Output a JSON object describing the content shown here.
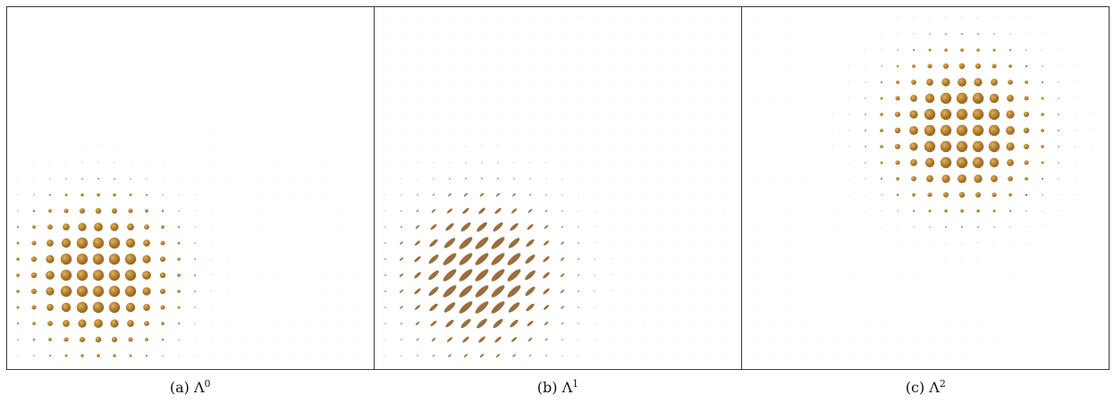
{
  "colors": {
    "glyph_dark": "#8a6127",
    "glyph_mid": "#b07c2e",
    "glyph_light": "#e3b25c",
    "ellipse_fill": "#9a6e3e",
    "frame": "#3a3a3a"
  },
  "panels": [
    {
      "id": "a",
      "caption_prefix": "(a) Λ",
      "caption_sup": "0",
      "glyph": "sphere",
      "field": {
        "center": [
          5,
          16
        ],
        "sigma": 2.9
      }
    },
    {
      "id": "b",
      "caption_prefix": "(b) Λ",
      "caption_sup": "1",
      "glyph": "ellipse",
      "field": {
        "center": [
          6,
          16
        ],
        "sigma": 2.9
      }
    },
    {
      "id": "c",
      "caption_prefix": "(c) Λ",
      "caption_sup": "2",
      "glyph": "sphere",
      "field": {
        "center": [
          13,
          7
        ],
        "sigma": 2.9
      }
    }
  ]
}
